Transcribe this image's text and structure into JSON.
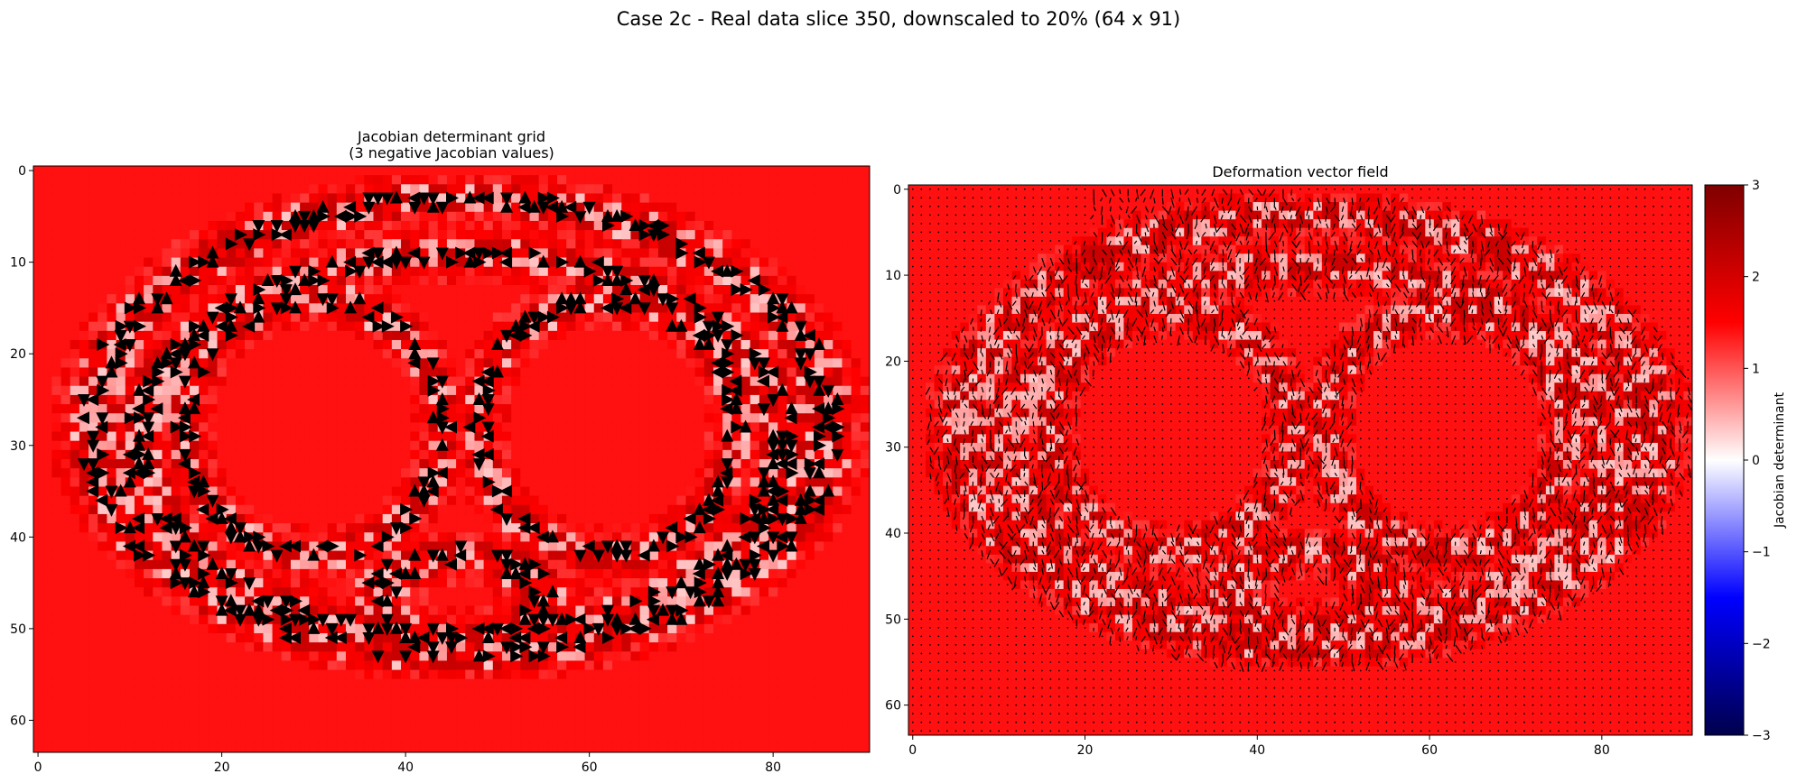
{
  "figure": {
    "suptitle": "Case 2c - Real data slice 350, downscaled to 20% (64 x 91)"
  },
  "colors": {
    "background_field": "#ff5a5a",
    "cold": "#00004c",
    "zero": "#ffffff",
    "hot": "#7f0000",
    "arrow": "#000000"
  },
  "chart_data": [
    {
      "type": "heatmap",
      "title_line1": "Jacobian determinant grid",
      "title_line2": "(3 negative Jacobian values)",
      "xlabel": "",
      "ylabel": "",
      "grid_shape": [
        64,
        91
      ],
      "xlim": [
        -0.5,
        90.5
      ],
      "ylim": [
        63.5,
        -0.5
      ],
      "xticks": [
        0,
        20,
        40,
        60,
        80
      ],
      "yticks": [
        0,
        10,
        20,
        30,
        40,
        50,
        60
      ],
      "colormap": "seismic",
      "vmin": -3,
      "vmax": 3,
      "base_value": 1.4,
      "markers": "triangle",
      "grid": false
    },
    {
      "type": "heatmap",
      "title": "Deformation vector field",
      "xlabel": "",
      "ylabel": "",
      "grid_shape": [
        64,
        91
      ],
      "xlim": [
        -0.5,
        90.5
      ],
      "ylim": [
        63.5,
        -0.5
      ],
      "xticks": [
        0,
        20,
        40,
        60,
        80
      ],
      "yticks": [
        0,
        10,
        20,
        30,
        40,
        50,
        60
      ],
      "colormap": "seismic",
      "vmin": -3,
      "vmax": 3,
      "base_value": 1.4,
      "overlay": "quiver",
      "grid": false
    }
  ],
  "colorbar": {
    "label": "Jacobian determinant",
    "ticks": [
      3,
      2,
      1,
      0,
      -1,
      -2,
      -3
    ],
    "tick_labels": [
      "3",
      "2",
      "1",
      "0",
      "−1",
      "−2",
      "−3"
    ],
    "min": -3,
    "max": 3,
    "orientation": "vertical",
    "placement": "right"
  }
}
